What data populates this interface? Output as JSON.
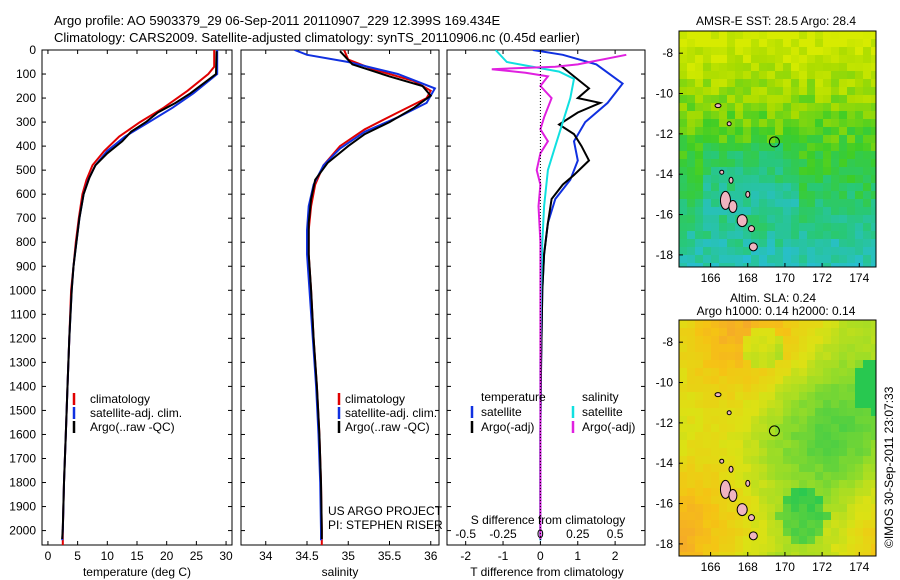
{
  "header": {
    "line1": "Argo profile: AO 5903379_29 06-Sep-2011 20110907_229 12.399S 169.434E",
    "line2": "Climatology: CARS2009. Satellite-adjusted climatology: synTS_20110906.nc (0.45d earlier)"
  },
  "depth_axis": {
    "ticks": [
      0,
      100,
      200,
      300,
      400,
      500,
      600,
      700,
      800,
      900,
      1000,
      1100,
      1200,
      1300,
      1400,
      1500,
      1600,
      1700,
      1800,
      1900,
      2000
    ],
    "ylim": [
      0,
      2060
    ]
  },
  "colors": {
    "climatology": "#e00000",
    "satellite": "#1030e0",
    "argo": "#000000",
    "sat_salinity": "#10e0e0",
    "argo_salinity": "#e020e0"
  },
  "chart_data": [
    {
      "id": "temperature",
      "type": "line",
      "xlabel": "temperature (deg C)",
      "xlim": [
        -1,
        31
      ],
      "xticks": [
        0,
        5,
        10,
        15,
        20,
        25,
        30
      ],
      "legend": [
        "climatology",
        "satellite-adj. clim.",
        "Argo(..raw -QC)"
      ],
      "series": [
        {
          "name": "climatology",
          "color": "#e00000",
          "points": [
            [
              28.0,
              0
            ],
            [
              28.0,
              70
            ],
            [
              27.0,
              100
            ],
            [
              23.5,
              170
            ],
            [
              19.5,
              240
            ],
            [
              15.5,
              300
            ],
            [
              12.0,
              360
            ],
            [
              9.5,
              420
            ],
            [
              7.5,
              480
            ],
            [
              6.5,
              540
            ],
            [
              5.8,
              600
            ],
            [
              5.2,
              700
            ],
            [
              4.7,
              800
            ],
            [
              4.3,
              900
            ],
            [
              3.9,
              1000
            ],
            [
              3.6,
              1200
            ],
            [
              3.3,
              1400
            ],
            [
              3.0,
              1600
            ],
            [
              2.7,
              1800
            ],
            [
              2.5,
              2000
            ],
            [
              2.5,
              2060
            ]
          ]
        },
        {
          "name": "satellite-adj. clim.",
          "color": "#1030e0",
          "points": [
            [
              28.5,
              0
            ],
            [
              28.5,
              100
            ],
            [
              24.5,
              180
            ],
            [
              21.0,
              240
            ],
            [
              17.0,
              300
            ],
            [
              13.0,
              360
            ],
            [
              10.0,
              420
            ],
            [
              8.0,
              480
            ],
            [
              6.8,
              540
            ],
            [
              6.0,
              600
            ],
            [
              5.3,
              700
            ],
            [
              4.8,
              800
            ],
            [
              4.3,
              900
            ],
            [
              4.0,
              1000
            ],
            [
              3.6,
              1200
            ],
            [
              3.3,
              1400
            ],
            [
              3.0,
              1600
            ],
            [
              2.7,
              1800
            ],
            [
              2.5,
              2000
            ],
            [
              2.4,
              2040
            ]
          ]
        },
        {
          "name": "Argo(..raw -QC)",
          "color": "#000000",
          "points": [
            [
              28.4,
              5
            ],
            [
              28.3,
              100
            ],
            [
              24.0,
              180
            ],
            [
              21.5,
              220
            ],
            [
              18.5,
              260
            ],
            [
              16.5,
              300
            ],
            [
              14.0,
              340
            ],
            [
              12.5,
              380
            ],
            [
              10.0,
              430
            ],
            [
              8.0,
              480
            ],
            [
              7.0,
              530
            ],
            [
              6.0,
              600
            ],
            [
              5.3,
              700
            ],
            [
              4.8,
              800
            ],
            [
              4.3,
              900
            ],
            [
              4.0,
              1000
            ],
            [
              3.6,
              1200
            ],
            [
              3.3,
              1400
            ],
            [
              3.0,
              1600
            ],
            [
              2.7,
              1800
            ],
            [
              2.5,
              1990
            ],
            [
              2.4,
              2035
            ]
          ]
        }
      ]
    },
    {
      "id": "salinity",
      "type": "line",
      "xlabel": "salinity",
      "xlim": [
        33.7,
        36.1
      ],
      "xticks": [
        34,
        34.5,
        35,
        35.5,
        36
      ],
      "legend": [
        "climatology",
        "satellite-adj. clim.",
        "Argo(..raw -QC)"
      ],
      "annotation": [
        "US ARGO PROJECT",
        "PI: STEPHEN RISER"
      ],
      "series": [
        {
          "name": "climatology",
          "color": "#e00000",
          "points": [
            [
              34.95,
              0
            ],
            [
              35.0,
              40
            ],
            [
              35.3,
              80
            ],
            [
              35.8,
              130
            ],
            [
              36.0,
              170
            ],
            [
              35.95,
              200
            ],
            [
              35.6,
              260
            ],
            [
              35.2,
              330
            ],
            [
              34.9,
              400
            ],
            [
              34.7,
              480
            ],
            [
              34.6,
              560
            ],
            [
              34.55,
              650
            ],
            [
              34.52,
              750
            ],
            [
              34.52,
              850
            ],
            [
              34.55,
              1000
            ],
            [
              34.58,
              1200
            ],
            [
              34.62,
              1400
            ],
            [
              34.65,
              1600
            ],
            [
              34.67,
              1800
            ],
            [
              34.68,
              2000
            ],
            [
              34.68,
              2060
            ]
          ]
        },
        {
          "name": "satellite-adj. clim.",
          "color": "#1030e0",
          "points": [
            [
              34.35,
              0
            ],
            [
              34.5,
              20
            ],
            [
              35.0,
              50
            ],
            [
              35.6,
              100
            ],
            [
              36.05,
              160
            ],
            [
              35.95,
              220
            ],
            [
              35.6,
              280
            ],
            [
              35.2,
              340
            ],
            [
              34.9,
              410
            ],
            [
              34.7,
              480
            ],
            [
              34.58,
              560
            ],
            [
              34.52,
              650
            ],
            [
              34.5,
              750
            ],
            [
              34.5,
              850
            ],
            [
              34.53,
              1000
            ],
            [
              34.57,
              1200
            ],
            [
              34.61,
              1400
            ],
            [
              34.64,
              1600
            ],
            [
              34.66,
              1800
            ],
            [
              34.67,
              2000
            ],
            [
              34.67,
              2040
            ]
          ]
        },
        {
          "name": "Argo(..raw -QC)",
          "color": "#000000",
          "points": [
            [
              34.9,
              5
            ],
            [
              35.05,
              60
            ],
            [
              35.5,
              110
            ],
            [
              35.9,
              150
            ],
            [
              36.0,
              190
            ],
            [
              35.8,
              240
            ],
            [
              35.5,
              300
            ],
            [
              35.2,
              350
            ],
            [
              35.0,
              400
            ],
            [
              34.75,
              470
            ],
            [
              34.6,
              540
            ],
            [
              34.55,
              620
            ],
            [
              34.52,
              720
            ],
            [
              34.52,
              850
            ],
            [
              34.55,
              1000
            ],
            [
              34.58,
              1200
            ],
            [
              34.62,
              1400
            ],
            [
              34.65,
              1600
            ],
            [
              34.67,
              1800
            ],
            [
              34.68,
              2000
            ],
            [
              34.68,
              2035
            ]
          ]
        }
      ]
    },
    {
      "id": "difference",
      "type": "line",
      "xlabel_top": "S difference from climatology",
      "xlabel": "T difference from climatology",
      "xlim": [
        -2.5,
        2.8
      ],
      "xticks": [
        -2,
        -1,
        0,
        1,
        2
      ],
      "top_ticks": [
        {
          "label": "-0.5",
          "x": -2
        },
        {
          "label": "-0.25",
          "x": -1
        },
        {
          "label": "0",
          "x": 0
        },
        {
          "label": "0.25",
          "x": 1
        },
        {
          "label": "0.5",
          "x": 2
        }
      ],
      "legend_temperature": {
        "title": "temperature",
        "items": [
          "satellite",
          "Argo(-adj)"
        ]
      },
      "legend_salinity": {
        "title": "salinity",
        "items": [
          "satellite",
          "Argo(-adj)"
        ]
      },
      "series": [
        {
          "name": "T satellite",
          "color": "#1030e0",
          "points": [
            [
              -0.2,
              0
            ],
            [
              0.6,
              20
            ],
            [
              1.5,
              60
            ],
            [
              2.2,
              140
            ],
            [
              1.8,
              220
            ],
            [
              1.2,
              300
            ],
            [
              0.9,
              380
            ],
            [
              1.0,
              460
            ],
            [
              0.8,
              540
            ],
            [
              0.4,
              620
            ],
            [
              0.2,
              720
            ],
            [
              0.1,
              850
            ],
            [
              0.05,
              1000
            ],
            [
              0.02,
              1300
            ],
            [
              0.0,
              1600
            ],
            [
              0.0,
              2040
            ]
          ]
        },
        {
          "name": "T Argo(-adj)",
          "color": "#000000",
          "points": [
            [
              0.5,
              60
            ],
            [
              0.9,
              110
            ],
            [
              1.3,
              160
            ],
            [
              1.0,
              200
            ],
            [
              1.6,
              220
            ],
            [
              1.0,
              260
            ],
            [
              0.5,
              310
            ],
            [
              0.9,
              350
            ],
            [
              1.1,
              400
            ],
            [
              1.3,
              460
            ],
            [
              0.9,
              520
            ],
            [
              0.6,
              560
            ],
            [
              0.3,
              620
            ],
            [
              0.2,
              720
            ],
            [
              0.1,
              850
            ],
            [
              0.05,
              1000
            ],
            [
              0.02,
              1300
            ],
            [
              0.0,
              1600
            ],
            [
              0.0,
              2035
            ]
          ]
        },
        {
          "name": "S satellite",
          "color": "#10e0e0",
          "points": [
            [
              -1.2,
              0
            ],
            [
              -0.9,
              50
            ],
            [
              0.5,
              90
            ],
            [
              0.9,
              120
            ],
            [
              0.8,
              200
            ],
            [
              0.6,
              300
            ],
            [
              0.4,
              400
            ],
            [
              0.2,
              500
            ],
            [
              0.1,
              650
            ],
            [
              0.05,
              800
            ],
            [
              0.02,
              1000
            ],
            [
              0.0,
              1300
            ],
            [
              0.0,
              2040
            ]
          ]
        },
        {
          "name": "S Argo(-adj)",
          "color": "#e020e0",
          "points": [
            [
              2.3,
              20
            ],
            [
              1.0,
              60
            ],
            [
              0.4,
              70
            ],
            [
              -0.5,
              75
            ],
            [
              -1.3,
              80
            ],
            [
              -0.4,
              95
            ],
            [
              0.2,
              110
            ],
            [
              0.0,
              150
            ],
            [
              0.3,
              200
            ],
            [
              0.1,
              280
            ],
            [
              0.0,
              330
            ],
            [
              0.2,
              380
            ],
            [
              0.0,
              430
            ],
            [
              -0.1,
              500
            ],
            [
              0.0,
              560
            ],
            [
              -0.05,
              650
            ],
            [
              0.0,
              800
            ],
            [
              0.0,
              1000
            ],
            [
              0.0,
              2035
            ]
          ]
        }
      ]
    }
  ],
  "maps": {
    "sst": {
      "title": "AMSR-E SST: 28.5 Argo: 28.4",
      "xticks": [
        166,
        168,
        170,
        172,
        174
      ],
      "yticks": [
        -8,
        -10,
        -12,
        -14,
        -16,
        -18
      ],
      "xlim": [
        164.3,
        174.9
      ],
      "ylim": [
        -18.6,
        -6.9
      ],
      "argo_marker": [
        169.434,
        -12.399
      ]
    },
    "sla": {
      "title_line1": "Altim. SLA: 0.24",
      "title_line2": "Argo h1000: 0.14 h2000: 0.14",
      "xticks": [
        166,
        168,
        170,
        172,
        174
      ],
      "yticks": [
        -8,
        -10,
        -12,
        -14,
        -16,
        -18
      ],
      "xlim": [
        164.3,
        174.9
      ],
      "ylim": [
        -18.6,
        -6.9
      ],
      "argo_marker": [
        169.434,
        -12.399
      ]
    }
  },
  "footer": {
    "credit": "©IMOS 30-Sep-2011 23:07:33"
  }
}
